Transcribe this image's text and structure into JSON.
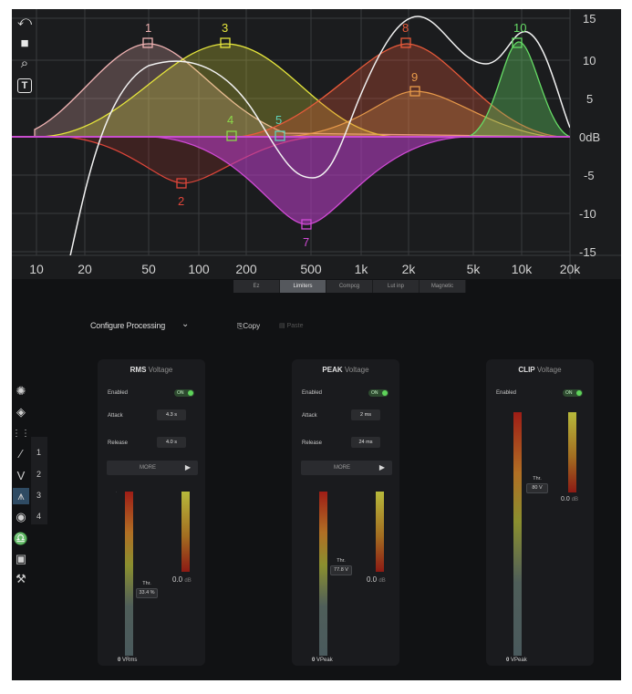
{
  "eq": {
    "y_labels": [
      "15",
      "10",
      "5",
      "0dB",
      "-5",
      "-10",
      "-15"
    ],
    "x_labels": [
      "10",
      "20",
      "50",
      "100",
      "200",
      "500",
      "1k",
      "2k",
      "5k",
      "10k",
      "20k"
    ],
    "bands": [
      {
        "label": "1",
        "color": "#f0b3b3"
      },
      {
        "label": "2",
        "color": "#e0463a"
      },
      {
        "label": "3",
        "color": "#e6e63c"
      },
      {
        "label": "4",
        "color": "#8cd94a"
      },
      {
        "label": "5",
        "color": "#5fd0b8"
      },
      {
        "label": "7",
        "color": "#d14ad6"
      },
      {
        "label": "8",
        "color": "#e85a3a"
      },
      {
        "label": "9",
        "color": "#e89a4a"
      },
      {
        "label": "10",
        "color": "#66dd66"
      }
    ],
    "tools": [
      "undo-icon",
      "camera-icon",
      "zoom-icon",
      "text-icon"
    ]
  },
  "tabs": [
    "Ez",
    "Limiters",
    "Compcg",
    "Lut inp",
    "Magnetic"
  ],
  "active_tab": 1,
  "configure_label": "Configure Processing",
  "copy_label": "Copy",
  "paste_label": "Paste",
  "band_numbers": [
    "1",
    "2",
    "3",
    "4"
  ],
  "panels": [
    {
      "title": "RMS",
      "subtitle": "Voltage",
      "enabled_label": "Enabled",
      "enabled_value": "ON",
      "attack_label": "Attack",
      "attack_value": "4.3 s",
      "release_label": "Release",
      "release_value": "4.0 s",
      "more_label": "MORE",
      "threshold_label": "Thr.",
      "threshold_value": "33.4 %",
      "db_value": "0.0",
      "db_unit": "dB",
      "meter_zero": "0",
      "meter_unit": "VRms"
    },
    {
      "title": "PEAK",
      "subtitle": "Voltage",
      "enabled_label": "Enabled",
      "enabled_value": "ON",
      "attack_label": "Attack",
      "attack_value": "2 ms",
      "release_label": "Release",
      "release_value": "24 ms",
      "more_label": "MORE",
      "threshold_label": "Thr.",
      "threshold_value": "77.8 V",
      "db_value": "0.0",
      "db_unit": "dB",
      "meter_zero": "0",
      "meter_unit": "VPeak"
    },
    {
      "title": "CLIP",
      "subtitle": "Voltage",
      "enabled_label": "Enabled",
      "enabled_value": "ON",
      "threshold_label": "Thr.",
      "threshold_value": "80 V",
      "db_value": "0.0",
      "db_unit": "dB",
      "meter_zero": "0",
      "meter_unit": "VPeak"
    }
  ]
}
